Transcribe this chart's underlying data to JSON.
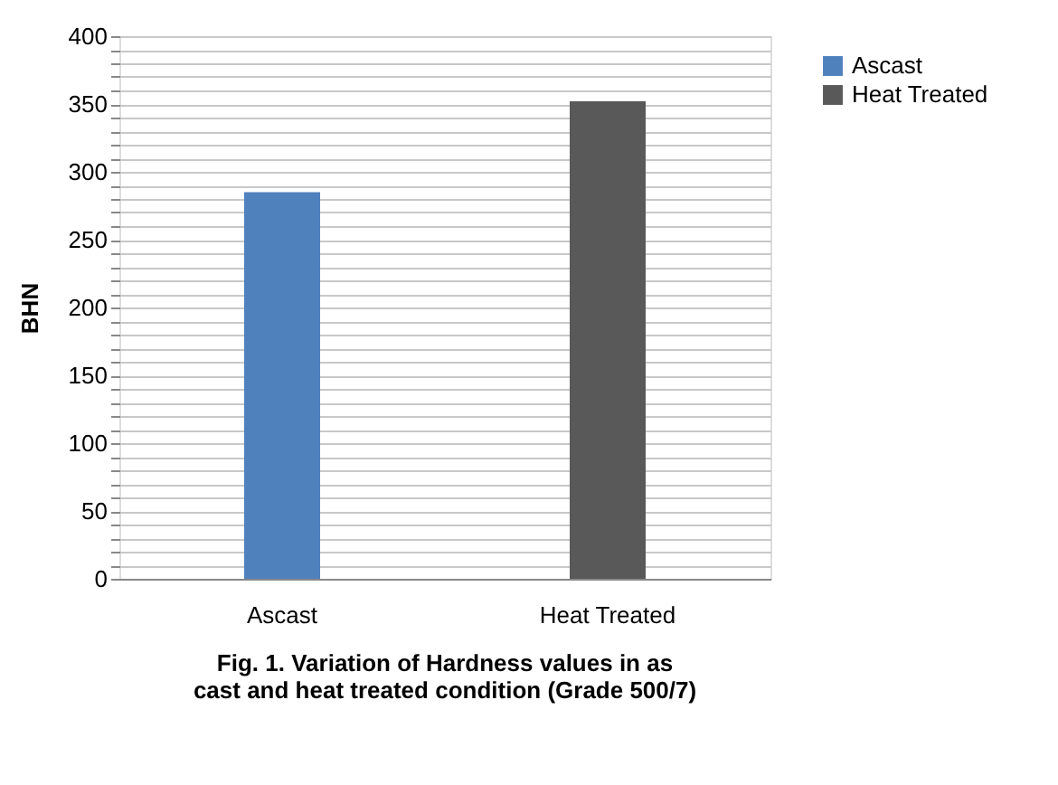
{
  "chart_data": {
    "type": "bar",
    "title": "Fig. 1. Variation of Hardness values in as cast and heat treated condition (Grade 500/7)",
    "ylabel": "BHN",
    "categories": [
      "Ascast",
      "Heat Treated"
    ],
    "series": [
      {
        "name": "Ascast",
        "color": "#4f81bd",
        "values": [
          285,
          null
        ]
      },
      {
        "name": "Heat Treated",
        "color": "#595959",
        "values": [
          null,
          352
        ]
      }
    ],
    "ylim": [
      0,
      400
    ],
    "yticks": [
      0,
      {
        "value": 10,
        "label": null
      },
      {
        "value": 20,
        "label": null
      },
      {
        "value": 30,
        "label": null
      },
      {
        "value": 40,
        "label": null
      },
      50,
      {
        "value": 60,
        "label": null
      },
      {
        "value": 70,
        "label": null
      },
      {
        "value": 80,
        "label": null
      },
      {
        "value": 90,
        "label": null
      },
      100,
      {
        "value": 110,
        "label": null
      },
      {
        "value": 120,
        "label": null
      },
      {
        "value": 130,
        "label": null
      },
      {
        "value": 140,
        "label": null
      },
      150,
      {
        "value": 160,
        "label": null
      },
      {
        "value": 170,
        "label": null
      },
      {
        "value": 180,
        "label": null
      },
      {
        "value": 190,
        "label": null
      },
      200,
      {
        "value": 210,
        "label": null
      },
      {
        "value": 220,
        "label": null
      },
      {
        "value": 230,
        "label": null
      },
      {
        "value": 240,
        "label": null
      },
      250,
      {
        "value": 260,
        "label": null
      },
      {
        "value": 270,
        "label": null
      },
      {
        "value": 280,
        "label": null
      },
      {
        "value": 290,
        "label": null
      },
      300,
      {
        "value": 310,
        "label": null
      },
      {
        "value": 320,
        "label": null
      },
      {
        "value": 330,
        "label": null
      },
      {
        "value": 340,
        "label": null
      },
      350,
      {
        "value": 360,
        "label": null
      },
      {
        "value": 370,
        "label": null
      },
      {
        "value": 380,
        "label": null
      },
      {
        "value": 390,
        "label": null
      },
      400
    ],
    "grid": "y",
    "legend": "right"
  }
}
